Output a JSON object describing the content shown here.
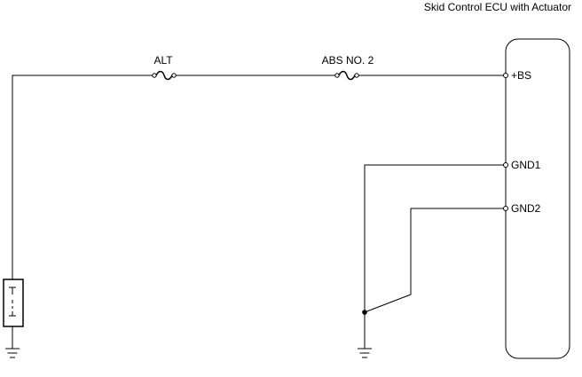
{
  "ecu": {
    "title": "Skid Control ECU with Actuator",
    "pins": {
      "bs": "+BS",
      "gnd1": "GND1",
      "gnd2": "GND2"
    }
  },
  "fuses": {
    "alt": "ALT",
    "abs_no2": "ABS NO. 2"
  },
  "colors": {
    "line": "#000000",
    "background": "#ffffff"
  }
}
